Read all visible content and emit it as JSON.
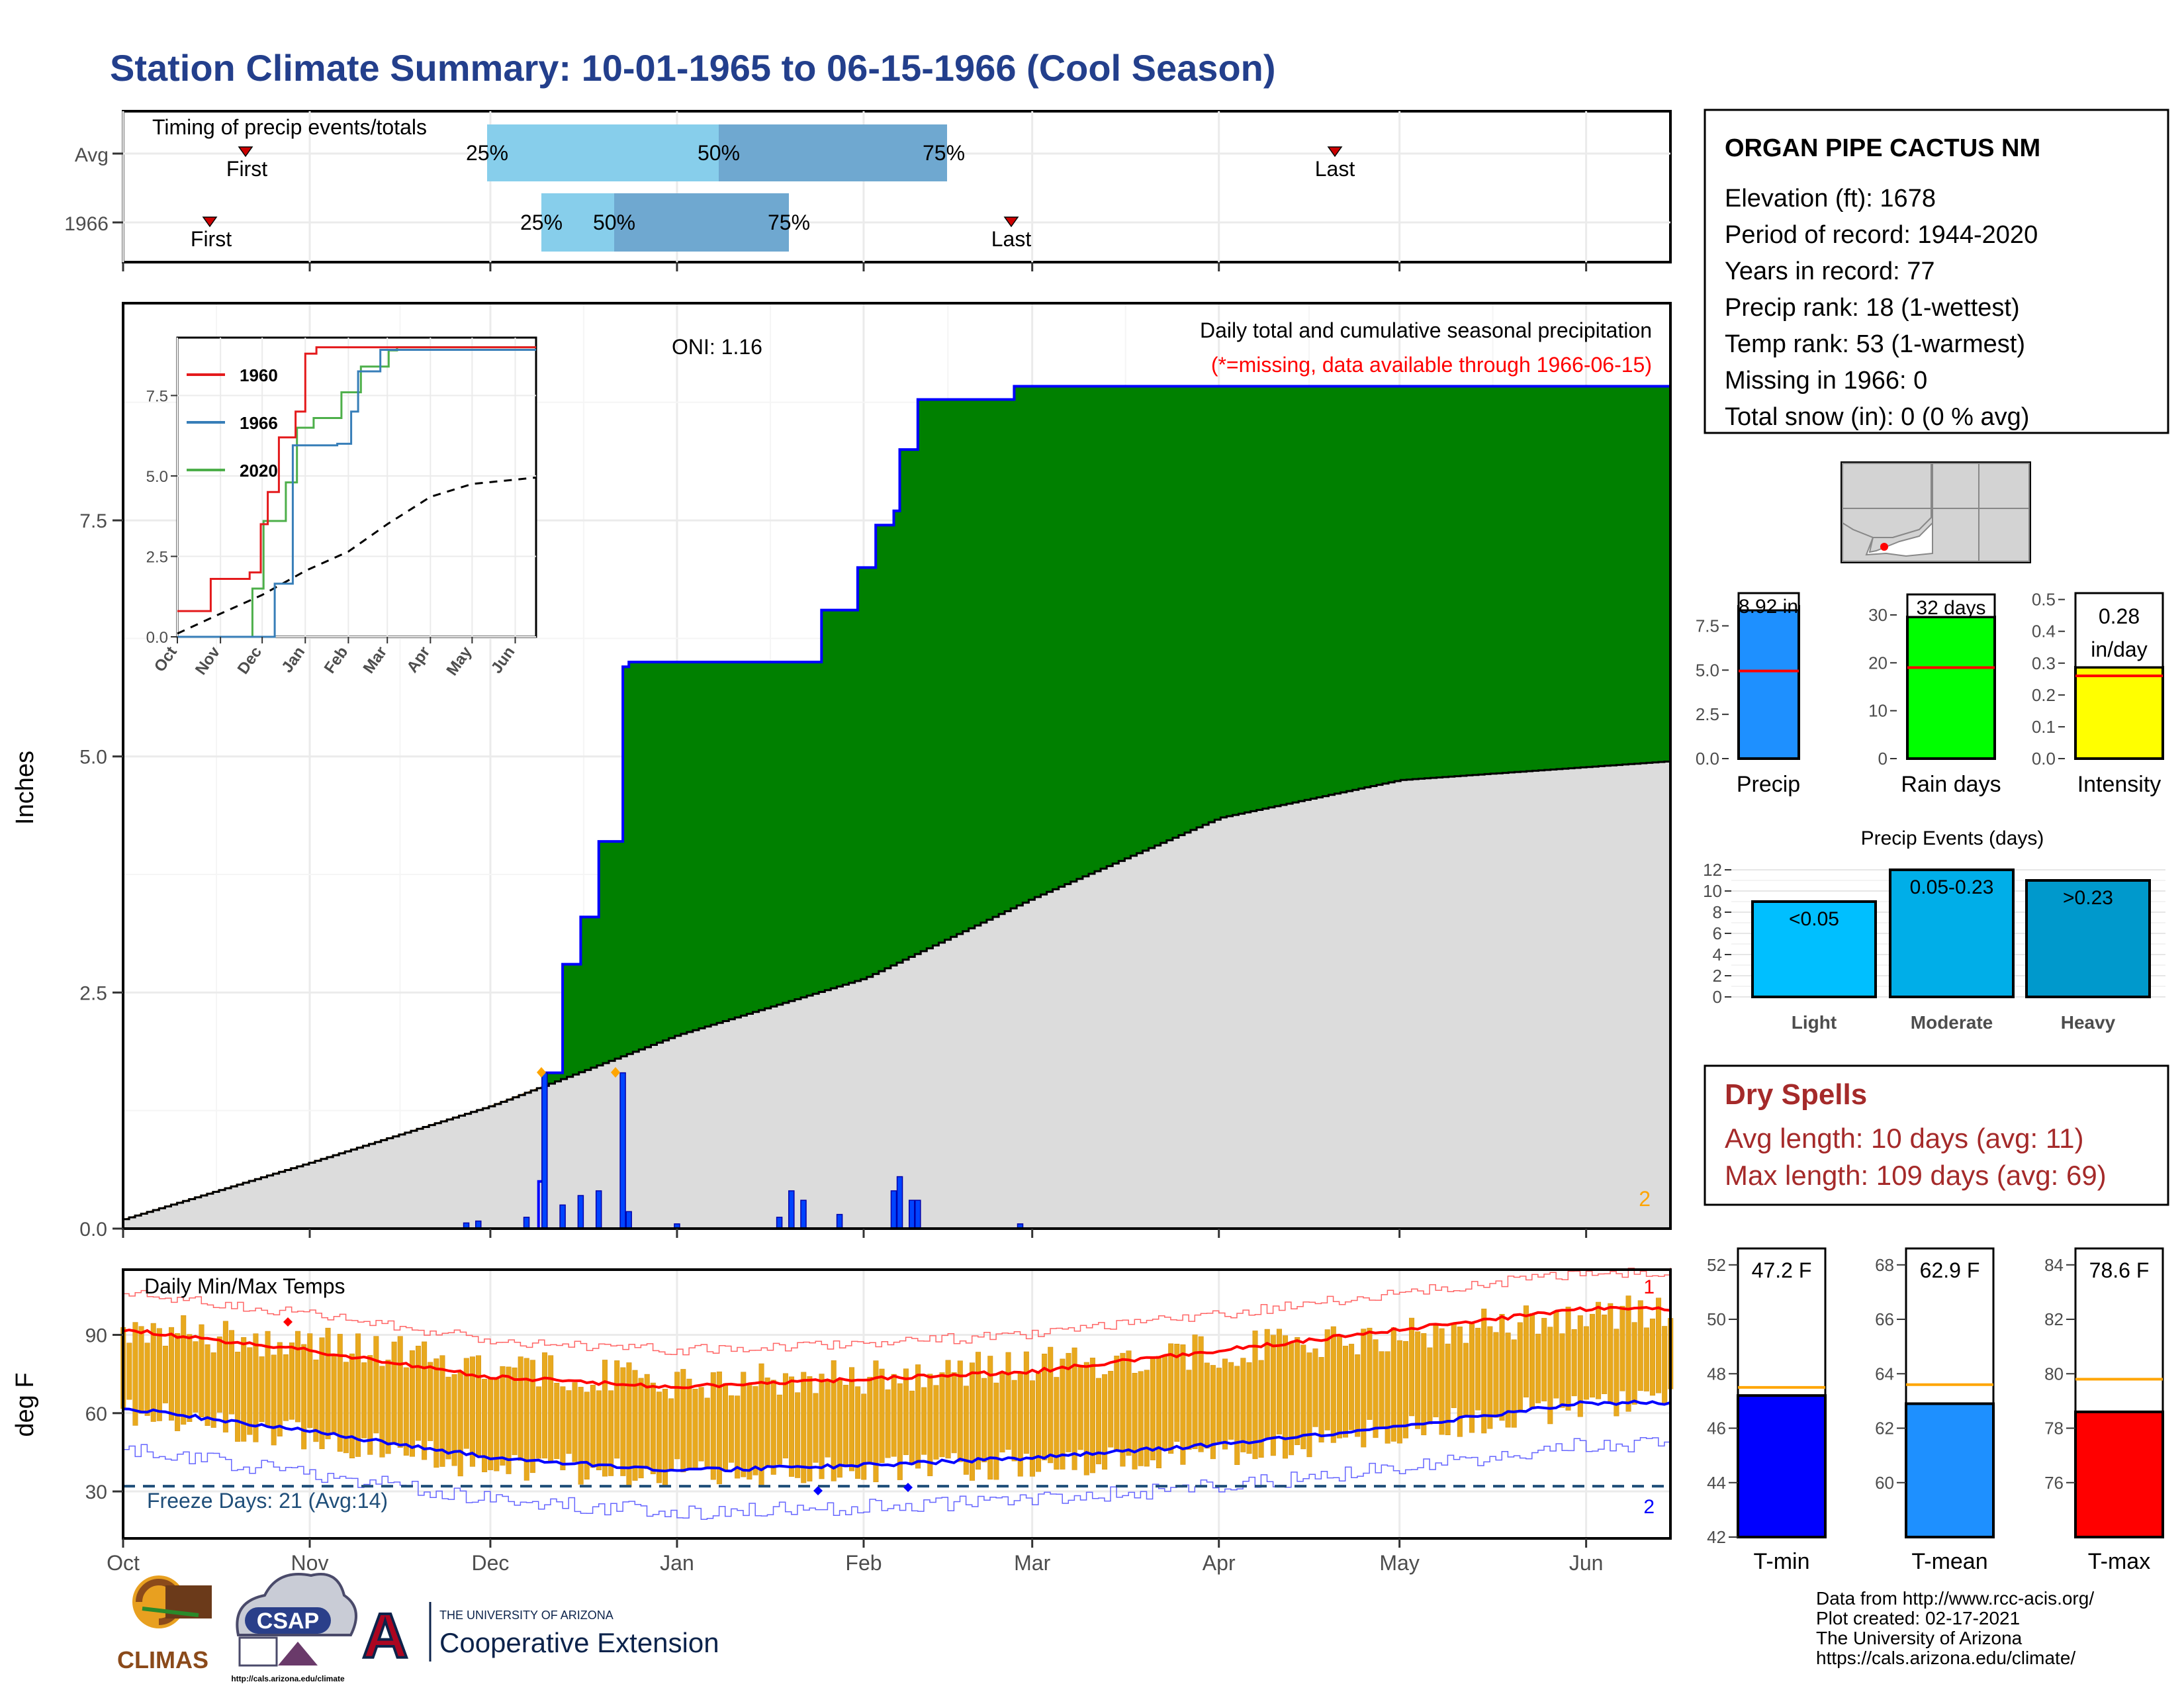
{
  "title": "Station Climate Summary: 10-01-1965 to 06-15-1966 (Cool Season)",
  "timing": {
    "label": "Timing of precip events/totals",
    "rows": [
      {
        "name": "Avg",
        "first_label": "First",
        "last_label": "Last",
        "p25_label": "25%",
        "p50_label": "50%",
        "p75_label": "75%"
      },
      {
        "name": "1966",
        "first_label": "First",
        "last_label": "Last",
        "p25_label": "25%",
        "p50_label": "50%",
        "p75_label": "75%"
      }
    ]
  },
  "station": {
    "name": "ORGAN PIPE CACTUS NM",
    "lines": [
      "Elevation (ft): 1678",
      "Period of record: 1944-2020",
      "Years in record: 77",
      "Precip rank: 18 (1-wettest)",
      "Temp rank: 53 (1-warmest)",
      "Missing in 1966: 0",
      "Total snow (in): 0 (0 % avg)"
    ]
  },
  "precip_panel": {
    "ylabel": "Inches",
    "oni": "ONI: 1.16",
    "caption": "Daily total and cumulative seasonal precipitation",
    "missing_note": "(*=missing, data available through 1966-06-15)",
    "corner_count": "2",
    "yticks": [
      "0.0",
      "2.5",
      "5.0",
      "7.5"
    ]
  },
  "inset": {
    "legend": [
      "1960",
      "1966",
      "2020"
    ],
    "yticks": [
      "0.0",
      "2.5",
      "5.0",
      "7.5"
    ],
    "months": [
      "Oct",
      "Nov",
      "Dec",
      "Jan",
      "Feb",
      "Mar",
      "Apr",
      "May",
      "Jun"
    ]
  },
  "temp_panel": {
    "ylabel": "deg F",
    "label": "Daily Min/Max Temps",
    "freeze": "Freeze Days: 21 (Avg:14)",
    "count_top": "1",
    "count_bottom": "2",
    "yticks": [
      "30",
      "60",
      "90"
    ]
  },
  "months": [
    "Oct",
    "Nov",
    "Dec",
    "Jan",
    "Feb",
    "Mar",
    "Apr",
    "May",
    "Jun"
  ],
  "summary_bars": {
    "precip": {
      "label": "Precip",
      "value_text": "8.92 in",
      "value": 8.92,
      "avg": 4.95,
      "yticks": [
        "0.0",
        "2.5",
        "5.0",
        "7.5"
      ]
    },
    "rain_days": {
      "label": "Rain days",
      "value_text": "32 days",
      "value": 32,
      "avg": 19,
      "yticks": [
        "0",
        "10",
        "20",
        "30"
      ]
    },
    "intensity": {
      "label": "Intensity",
      "value_text1": "0.28",
      "value_text2": "in/day",
      "value": 0.28,
      "avg": 0.26,
      "yticks": [
        "0.0",
        "0.1",
        "0.2",
        "0.3",
        "0.4",
        "0.5"
      ]
    }
  },
  "events": {
    "title": "Precip Events (days)",
    "categories": [
      "Light",
      "Moderate",
      "Heavy"
    ],
    "bar_labels": [
      "<0.05",
      "0.05-0.23",
      ">0.23"
    ],
    "values": [
      9,
      12,
      11
    ],
    "yticks": [
      "0",
      "2",
      "4",
      "6",
      "8",
      "10",
      "12"
    ]
  },
  "dry_spells": {
    "title": "Dry Spells",
    "avg": "Avg length: 10 days (avg: 11)",
    "max": "Max length: 109 days (avg: 69)"
  },
  "temp_bars": [
    {
      "label": "T-min",
      "value_text": "47.2 F",
      "value": 47.2,
      "avg": 47.5,
      "ymin": 42,
      "ymax": 52.7,
      "yticks": [
        "42",
        "44",
        "46",
        "48",
        "50",
        "52"
      ],
      "color": "#0000ff"
    },
    {
      "label": "T-mean",
      "value_text": "62.9 F",
      "value": 62.9,
      "avg": 63.6,
      "ymin": 58,
      "ymax": 68.7,
      "yticks": [
        "60",
        "62",
        "64",
        "66",
        "68"
      ],
      "color": "#1e90ff"
    },
    {
      "label": "T-max",
      "value_text": "78.6 F",
      "value": 78.6,
      "avg": 79.8,
      "ymin": 74,
      "ymax": 84.7,
      "yticks": [
        "76",
        "78",
        "80",
        "82",
        "84"
      ],
      "color": "#ff0000"
    }
  ],
  "footer": {
    "lines": [
      "Data from http://www.rcc-acis.org/",
      "Plot created: 02-17-2021",
      "The University of Arizona",
      "https://cals.arizona.edu/climate/"
    ],
    "logo_climas": "CLIMAS",
    "logo_csap": "CSAP",
    "csap_url": "http://cals.arizona.edu/climate",
    "ua_small": "THE UNIVERSITY OF ARIZONA",
    "ua_big": "Cooperative Extension",
    "ua_letter": "A"
  },
  "chart_data": {
    "type": "area",
    "title": "Daily total and cumulative seasonal precipitation",
    "ylabel": "Inches",
    "ylim": [
      0,
      9.8
    ],
    "series": [
      {
        "name": "1966",
        "x": [
          "1965-10-01",
          "1965-12-09",
          "1965-12-10",
          "1965-12-13",
          "1965-12-16",
          "1965-12-19",
          "1965-12-23",
          "1965-12-24",
          "1966-01-25",
          "1966-01-31",
          "1966-02-03",
          "1966-02-06",
          "1966-02-07",
          "1966-02-10",
          "1966-02-26",
          "1966-06-15"
        ],
        "values": [
          0,
          0.5,
          1.65,
          2.8,
          3.3,
          4.1,
          5.95,
          6.0,
          6.55,
          7.0,
          7.45,
          7.6,
          8.25,
          8.78,
          8.92,
          8.92
        ]
      },
      {
        "name": "Avg",
        "x": [
          "1965-10-01",
          "1965-11-01",
          "1965-12-01",
          "1966-01-01",
          "1966-02-01",
          "1966-03-01",
          "1966-04-01",
          "1966-05-01",
          "1966-06-15"
        ],
        "values": [
          0.1,
          0.7,
          1.3,
          2.05,
          2.65,
          3.5,
          4.35,
          4.75,
          4.95
        ]
      }
    ],
    "daily_precip": [
      {
        "date": "1965-11-27",
        "value": 0.06
      },
      {
        "date": "1965-11-29",
        "value": 0.08
      },
      {
        "date": "1965-12-07",
        "value": 0.12
      },
      {
        "date": "1965-12-10",
        "value": 1.65
      },
      {
        "date": "1965-12-13",
        "value": 0.25
      },
      {
        "date": "1965-12-16",
        "value": 0.35
      },
      {
        "date": "1965-12-19",
        "value": 0.4
      },
      {
        "date": "1965-12-23",
        "value": 1.65
      },
      {
        "date": "1965-12-24",
        "value": 0.18
      },
      {
        "date": "1966-01-01",
        "value": 0.05
      },
      {
        "date": "1966-01-18",
        "value": 0.12
      },
      {
        "date": "1966-01-20",
        "value": 0.4
      },
      {
        "date": "1966-01-22",
        "value": 0.3
      },
      {
        "date": "1966-01-28",
        "value": 0.15
      },
      {
        "date": "1966-02-06",
        "value": 0.4
      },
      {
        "date": "1966-02-07",
        "value": 0.55
      },
      {
        "date": "1966-02-09",
        "value": 0.3
      },
      {
        "date": "1966-02-10",
        "value": 0.3
      },
      {
        "date": "1966-02-27",
        "value": 0.05
      }
    ],
    "inset_series": [
      {
        "name": "1960",
        "values": [
          [
            0,
            0.8
          ],
          [
            24,
            0.8
          ],
          [
            24,
            1.8
          ],
          [
            44,
            1.8
          ],
          [
            52,
            2.0
          ],
          [
            60,
            3.5
          ],
          [
            65,
            4.5
          ],
          [
            73,
            6.2
          ],
          [
            85,
            7.0
          ],
          [
            92,
            8.8
          ],
          [
            100,
            9.0
          ],
          [
            160,
            9.0
          ],
          [
            258,
            9.0
          ]
        ]
      },
      {
        "name": "1966",
        "values": [
          [
            0,
            0.0
          ],
          [
            57,
            0.0
          ],
          [
            70,
            1.65
          ],
          [
            83,
            5.95
          ],
          [
            115,
            6.0
          ],
          [
            125,
            7.0
          ],
          [
            130,
            8.25
          ],
          [
            146,
            8.92
          ],
          [
            258,
            8.92
          ]
        ]
      },
      {
        "name": "2020",
        "values": [
          [
            0,
            0.0
          ],
          [
            54,
            0.0
          ],
          [
            54,
            1.5
          ],
          [
            62,
            3.6
          ],
          [
            78,
            4.8
          ],
          [
            86,
            6.5
          ],
          [
            98,
            6.8
          ],
          [
            118,
            7.6
          ],
          [
            132,
            8.4
          ],
          [
            152,
            8.9
          ],
          [
            158,
            9.0
          ],
          [
            258,
            9.0
          ]
        ]
      },
      {
        "name": "Avg",
        "values": [
          [
            0,
            0.1
          ],
          [
            30,
            0.7
          ],
          [
            61,
            1.3
          ],
          [
            92,
            2.05
          ],
          [
            123,
            2.65
          ],
          [
            151,
            3.5
          ],
          [
            182,
            4.35
          ],
          [
            212,
            4.75
          ],
          [
            258,
            4.95
          ]
        ]
      }
    ],
    "temp_x": [
      "Oct",
      "Nov",
      "Dec",
      "Jan",
      "Feb",
      "Mar",
      "Apr",
      "May",
      "Jun"
    ],
    "temp_avg_max": [
      92,
      84,
      74,
      70,
      73,
      76,
      84,
      92,
      100
    ],
    "temp_avg_min": [
      62,
      53,
      43,
      38,
      40,
      43,
      48,
      55,
      64
    ],
    "temp_max": [
      93,
      87,
      79,
      71,
      74,
      78,
      84,
      89,
      98
    ],
    "temp_min": [
      61,
      51,
      40,
      37,
      38,
      41,
      45,
      53,
      64
    ],
    "freeze_line": 32
  }
}
